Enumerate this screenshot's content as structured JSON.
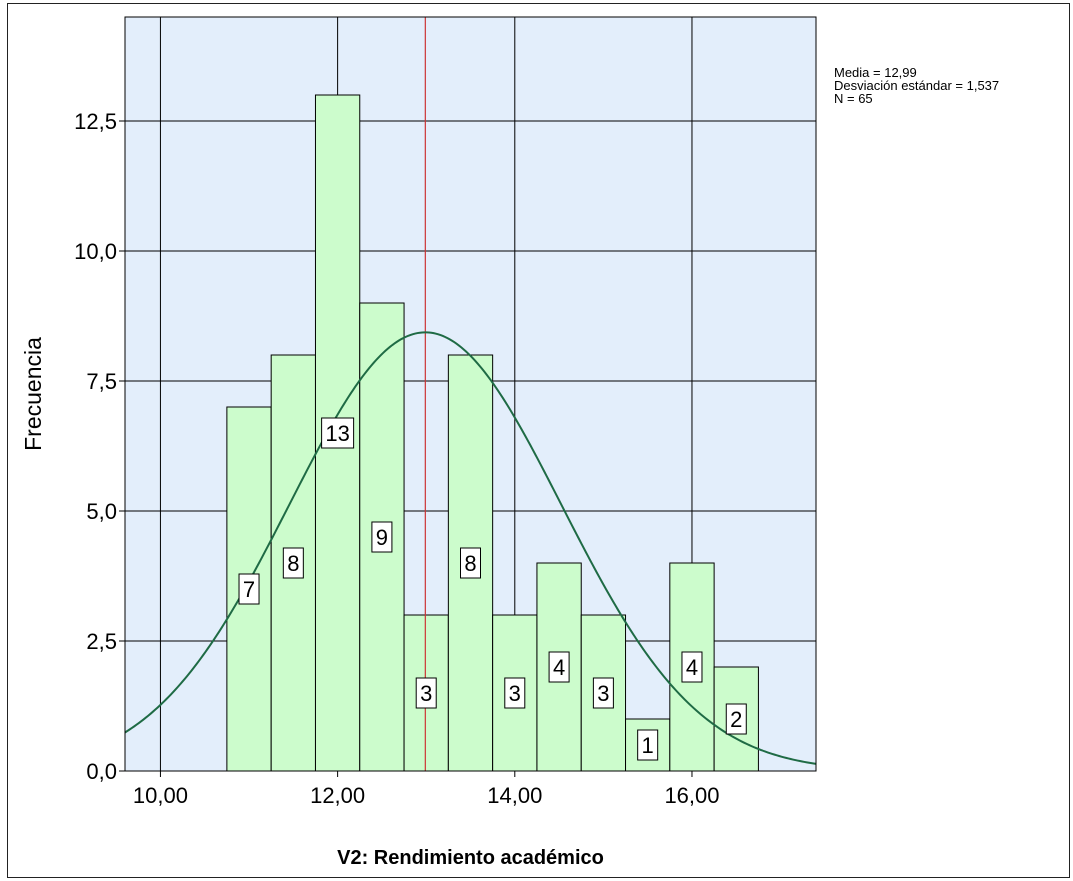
{
  "chart_data": {
    "type": "bar",
    "subtype": "histogram",
    "xlabel": "V2: Rendimiento académico",
    "ylabel": "Frecuencia",
    "xlim": [
      9.6,
      17.4
    ],
    "ylim": [
      0,
      14.5
    ],
    "x_ticks": [
      10,
      12,
      14,
      16
    ],
    "x_tick_labels": [
      "10,00",
      "12,00",
      "14,00",
      "16,00"
    ],
    "y_ticks": [
      0,
      2.5,
      5,
      7.5,
      10,
      12.5
    ],
    "y_tick_labels": [
      "0,0",
      "2,5",
      "5,0",
      "7,5",
      "10,0",
      "12,5"
    ],
    "grid": true,
    "bins": [
      {
        "x0": 10.75,
        "x1": 11.25,
        "value": 7,
        "label": "7"
      },
      {
        "x0": 11.25,
        "x1": 11.75,
        "value": 8,
        "label": "8"
      },
      {
        "x0": 11.75,
        "x1": 12.25,
        "value": 13,
        "label": "13"
      },
      {
        "x0": 12.25,
        "x1": 12.75,
        "value": 9,
        "label": "9"
      },
      {
        "x0": 12.75,
        "x1": 13.25,
        "value": 3,
        "label": "3"
      },
      {
        "x0": 13.25,
        "x1": 13.75,
        "value": 8,
        "label": "8"
      },
      {
        "x0": 13.75,
        "x1": 14.25,
        "value": 3,
        "label": "3"
      },
      {
        "x0": 14.25,
        "x1": 14.75,
        "value": 4,
        "label": "4"
      },
      {
        "x0": 14.75,
        "x1": 15.25,
        "value": 3,
        "label": "3"
      },
      {
        "x0": 15.25,
        "x1": 15.75,
        "value": 1,
        "label": "1"
      },
      {
        "x0": 15.75,
        "x1": 16.25,
        "value": 4,
        "label": "4"
      },
      {
        "x0": 16.25,
        "x1": 16.75,
        "value": 2,
        "label": "2"
      }
    ],
    "mean": 12.99,
    "std": 1.537,
    "n": 65,
    "bin_width": 0.5,
    "stats_lines": [
      "Media = 12,99",
      "Desviación estándar = 1,537",
      "N = 65"
    ],
    "colors": {
      "plot_bg": "#e3eefb",
      "bar_fill": "#ccfccc",
      "bar_stroke": "#000000",
      "curve": "#1f6b45",
      "mean_line": "#cc3333",
      "grid": "#000000"
    }
  }
}
